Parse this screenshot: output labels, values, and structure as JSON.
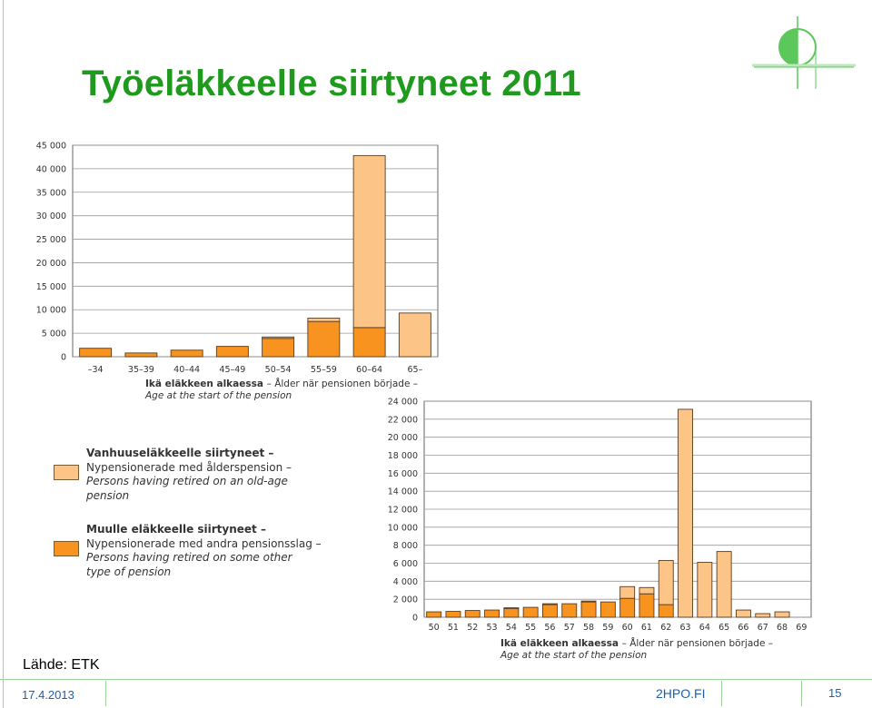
{
  "slide": {
    "title": "Työeläkkeelle siirtyneet 2011",
    "source": "Lähde: ETK",
    "date": "17.4.2013",
    "site": "2HPO.FI",
    "page": "15"
  },
  "colors": {
    "old_age": "#fcc487",
    "other": "#f7931e",
    "bar_stroke": "#5a3c1e",
    "title": "#1f9a1f",
    "footer": "#1f5fa8",
    "logo": "#5cc85c"
  },
  "legend": [
    {
      "fi": "Vanhuuseläkkeelle siirtyneet –",
      "sv": "Nypensionerade med ålderspension –",
      "en": "Persons having retired on an old-age pension",
      "color": "#fcc487"
    },
    {
      "fi": "Muulle eläkkeelle siirtyneet –",
      "sv": "Nypensionerade med andra pensionsslag –",
      "en": "Persons having retired on some other type of pension",
      "color": "#f7931e"
    }
  ],
  "chart_data": [
    {
      "type": "bar",
      "stacked": true,
      "xlabel": "Ikä eläkkeen alkaessa – Ålder när pensionen började – Age at the start of the pension",
      "xlabel_parts": [
        "Ikä eläkkeen alkaessa",
        "– Ålder när pensionen började –",
        "Age at the start of the pension"
      ],
      "categories": [
        "–34",
        "35–39",
        "40–44",
        "45–49",
        "50–54",
        "55–59",
        "60–64",
        "65–"
      ],
      "yticks": [
        "0",
        "5 000",
        "10 000",
        "15 000",
        "20 000",
        "25 000",
        "30 000",
        "35 000",
        "40 000",
        "45 000"
      ],
      "ylim": [
        0,
        45000
      ],
      "grid": true,
      "series": [
        {
          "name": "Muulle eläkkeelle siirtyneet",
          "values": [
            1800,
            800,
            1400,
            2200,
            3900,
            7500,
            6200,
            0
          ]
        },
        {
          "name": "Vanhuuseläkkeelle siirtyneet",
          "values": [
            0,
            0,
            0,
            0,
            300,
            700,
            36600,
            9300
          ]
        }
      ]
    },
    {
      "type": "bar",
      "stacked": true,
      "xlabel": "Ikä eläkkeen alkaessa – Ålder när pensionen började – Age at the start of the pension",
      "xlabel_parts": [
        "Ikä eläkkeen alkaessa",
        "– Ålder när pensionen började –",
        "Age at the start of the pension"
      ],
      "categories": [
        "50",
        "51",
        "52",
        "53",
        "54",
        "55",
        "56",
        "57",
        "58",
        "59",
        "60",
        "61",
        "62",
        "63",
        "64",
        "65",
        "66",
        "67",
        "68",
        "69"
      ],
      "yticks": [
        "0",
        "2 000",
        "4 000",
        "6 000",
        "8 000",
        "10 000",
        "12 000",
        "14 000",
        "16 000",
        "18 000",
        "20 000",
        "22 000",
        "24 000"
      ],
      "ylim": [
        0,
        24000
      ],
      "grid": true,
      "series": [
        {
          "name": "Muulle eläkkeelle siirtyneet",
          "values": [
            600,
            650,
            750,
            800,
            950,
            1100,
            1400,
            1500,
            1700,
            1700,
            2100,
            2600,
            1400,
            0,
            0,
            0,
            0,
            0,
            0,
            0
          ]
        },
        {
          "name": "Vanhuuseläkkeelle siirtyneet",
          "values": [
            0,
            0,
            0,
            0,
            100,
            0,
            100,
            0,
            100,
            0,
            1300,
            700,
            4900,
            23100,
            6100,
            7300,
            800,
            400,
            600,
            0
          ]
        }
      ]
    }
  ]
}
